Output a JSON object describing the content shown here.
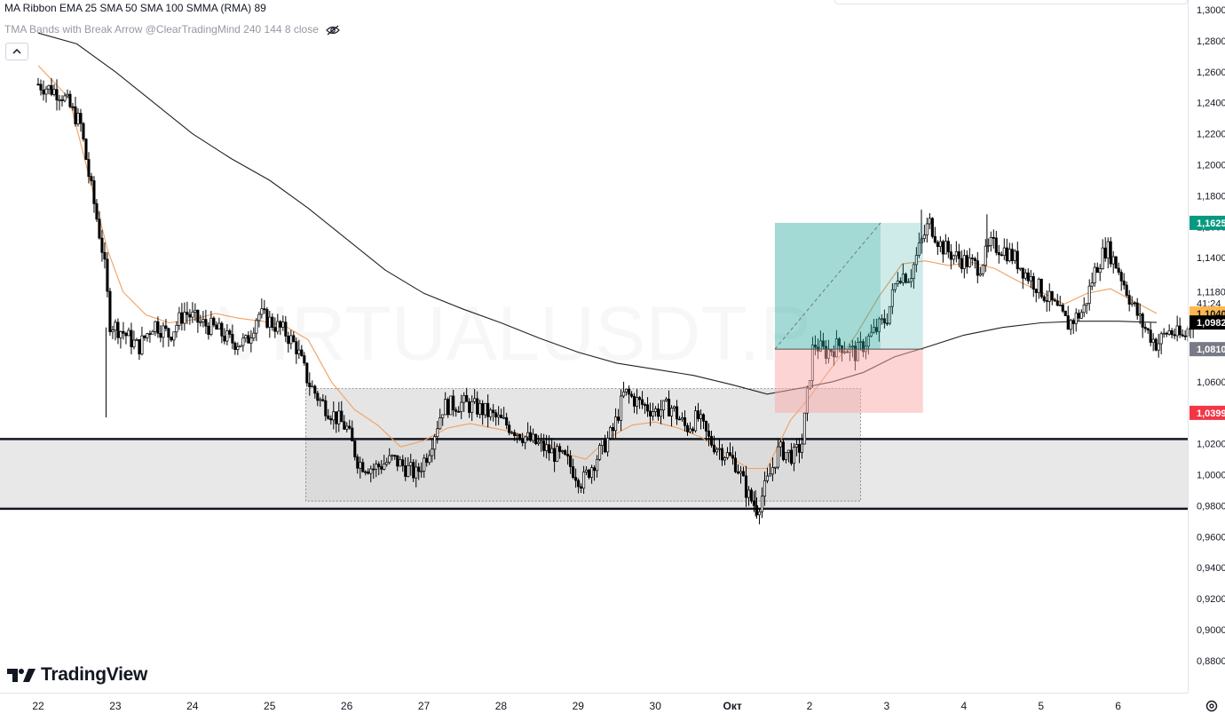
{
  "legend": {
    "ribbon": "MA Ribbon EMA 25 SMA 50 SMA 100 SMMA (RMA) 89",
    "tma": "TMA Bands with Break Arrow @ClearTradingMind 240 144 8 close"
  },
  "icons": {
    "visibility": "eye-crossed-icon",
    "collapse": "chevron-up-icon",
    "settings": "gear-icon"
  },
  "watermark": "VIRTUALUSDT.P",
  "logo_text": "TradingView",
  "colors": {
    "up_candle": "#ffffff",
    "down_candle": "#000000",
    "wick": "#000000",
    "ema": "#f0a060",
    "smma": "#222222",
    "profit_zone": "#26a69a",
    "loss_zone": "#f7a9a8",
    "range_box": "#d0d0d0",
    "support_band": "#e8e8e8",
    "target_label": "#089981",
    "stop_label": "#f23645",
    "price_label": "#ffb74d",
    "black_label": "#000000",
    "grey_label": "#787b86"
  },
  "chart_data": {
    "type": "candlestick",
    "symbol": "VIRTUALUSDT.P",
    "y_axis": {
      "range": [
        0.87,
        1.3
      ],
      "ticks": [
        "1,3000",
        "1,2800",
        "1,2600",
        "1,2400",
        "1,2200",
        "1,2000",
        "1,1800",
        "1,1600",
        "1,1400",
        "1,1200",
        "1,1000",
        "1,0800",
        "1,0600",
        "1,0400",
        "1,0200",
        "1,0000",
        "0,9800",
        "0,9600",
        "0,9400",
        "0,9200",
        "0,9000",
        "0,8800"
      ],
      "tick_values": [
        1.3,
        1.28,
        1.26,
        1.24,
        1.22,
        1.2,
        1.18,
        1.16,
        1.14,
        1.12,
        1.1,
        1.08,
        1.06,
        1.04,
        1.02,
        1.0,
        0.98,
        0.96,
        0.94,
        0.92,
        0.9,
        0.88
      ]
    },
    "x_axis": {
      "labels": [
        "22",
        "23",
        "24",
        "25",
        "26",
        "27",
        "28",
        "29",
        "30",
        "Окт",
        "2",
        "3",
        "4",
        "5",
        "6"
      ],
      "day_index": [
        0,
        1,
        2,
        3,
        4,
        5,
        6,
        7,
        8,
        9,
        10,
        11,
        12,
        13,
        14
      ]
    },
    "price_labels": [
      {
        "text": "1,1625",
        "value": 1.1625,
        "kind": "target"
      },
      {
        "text": "1,1180",
        "value": 1.118,
        "kind": "plain"
      },
      {
        "text": "41:24",
        "value": 1.1105,
        "kind": "countdown"
      },
      {
        "text": "1,1040",
        "value": 1.104,
        "kind": "price"
      },
      {
        "text": "1,0982",
        "value": 1.0982,
        "kind": "black"
      },
      {
        "text": "1,0810",
        "value": 1.081,
        "kind": "grey"
      },
      {
        "text": "1,0399",
        "value": 1.0399,
        "kind": "stop"
      }
    ],
    "support_lines": [
      1.023,
      0.978
    ],
    "range_box": {
      "x_start": 3.47,
      "x_end": 10.66,
      "top": 1.0555,
      "bottom": 0.983
    },
    "position": {
      "x_start": 9.55,
      "x_mid": 10.92,
      "x_end": 11.47,
      "entry": 1.081,
      "target": 1.1625,
      "stop": 1.0399
    },
    "series": [
      {
        "name": "EMA 25",
        "kind": "ema",
        "points": [
          [
            0.0,
            1.264
          ],
          [
            0.4,
            1.243
          ],
          [
            0.7,
            1.185
          ],
          [
            0.9,
            1.145
          ],
          [
            1.1,
            1.118
          ],
          [
            1.4,
            1.103
          ],
          [
            1.7,
            1.098
          ],
          [
            2.0,
            1.1
          ],
          [
            2.3,
            1.104
          ],
          [
            2.6,
            1.101
          ],
          [
            2.9,
            1.099
          ],
          [
            3.2,
            1.096
          ],
          [
            3.5,
            1.087
          ],
          [
            3.8,
            1.06
          ],
          [
            4.1,
            1.042
          ],
          [
            4.4,
            1.032
          ],
          [
            4.7,
            1.018
          ],
          [
            5.0,
            1.022
          ],
          [
            5.3,
            1.03
          ],
          [
            5.6,
            1.033
          ],
          [
            5.9,
            1.03
          ],
          [
            6.2,
            1.027
          ],
          [
            6.5,
            1.022
          ],
          [
            6.8,
            1.014
          ],
          [
            7.1,
            1.01
          ],
          [
            7.4,
            1.024
          ],
          [
            7.7,
            1.032
          ],
          [
            8.0,
            1.034
          ],
          [
            8.3,
            1.03
          ],
          [
            8.6,
            1.024
          ],
          [
            8.9,
            1.014
          ],
          [
            9.2,
            1.004
          ],
          [
            9.45,
            1.004
          ],
          [
            9.75,
            1.035
          ],
          [
            10.0,
            1.05
          ],
          [
            10.3,
            1.07
          ],
          [
            10.6,
            1.09
          ],
          [
            10.9,
            1.115
          ],
          [
            11.2,
            1.136
          ],
          [
            11.5,
            1.138
          ],
          [
            11.8,
            1.135
          ],
          [
            12.1,
            1.137
          ],
          [
            12.4,
            1.133
          ],
          [
            12.7,
            1.125
          ],
          [
            13.0,
            1.118
          ],
          [
            13.3,
            1.11
          ],
          [
            13.6,
            1.117
          ],
          [
            13.9,
            1.12
          ],
          [
            14.2,
            1.112
          ],
          [
            14.5,
            1.104
          ]
        ]
      },
      {
        "name": "SMMA 89",
        "kind": "smma",
        "points": [
          [
            0.0,
            1.285
          ],
          [
            0.5,
            1.278
          ],
          [
            1.0,
            1.26
          ],
          [
            1.5,
            1.24
          ],
          [
            2.0,
            1.22
          ],
          [
            2.5,
            1.204
          ],
          [
            3.0,
            1.19
          ],
          [
            3.5,
            1.172
          ],
          [
            4.0,
            1.152
          ],
          [
            4.5,
            1.132
          ],
          [
            5.0,
            1.117
          ],
          [
            5.5,
            1.107
          ],
          [
            6.0,
            1.098
          ],
          [
            6.5,
            1.088
          ],
          [
            7.0,
            1.079
          ],
          [
            7.5,
            1.072
          ],
          [
            8.0,
            1.068
          ],
          [
            8.5,
            1.064
          ],
          [
            9.0,
            1.058
          ],
          [
            9.45,
            1.052
          ],
          [
            9.9,
            1.056
          ],
          [
            10.3,
            1.06
          ],
          [
            10.7,
            1.066
          ],
          [
            11.1,
            1.076
          ],
          [
            11.5,
            1.082
          ],
          [
            12.0,
            1.09
          ],
          [
            12.5,
            1.095
          ],
          [
            13.0,
            1.098
          ],
          [
            13.5,
            1.099
          ],
          [
            14.0,
            1.099
          ],
          [
            14.5,
            1.0982
          ]
        ]
      }
    ],
    "price_path": [
      [
        0.0,
        1.252
      ],
      [
        0.3,
        1.246
      ],
      [
        0.55,
        1.226
      ],
      [
        0.65,
        1.195
      ],
      [
        0.75,
        1.168
      ],
      [
        0.85,
        1.14
      ],
      [
        0.93,
        1.098
      ],
      [
        1.1,
        1.092
      ],
      [
        1.3,
        1.082
      ],
      [
        1.5,
        1.098
      ],
      [
        1.7,
        1.09
      ],
      [
        1.9,
        1.105
      ],
      [
        2.1,
        1.098
      ],
      [
        2.3,
        1.094
      ],
      [
        2.5,
        1.086
      ],
      [
        2.7,
        1.085
      ],
      [
        2.85,
        1.104
      ],
      [
        3.0,
        1.099
      ],
      [
        3.2,
        1.092
      ],
      [
        3.35,
        1.082
      ],
      [
        3.5,
        1.06
      ],
      [
        3.65,
        1.048
      ],
      [
        3.8,
        1.04
      ],
      [
        4.0,
        1.03
      ],
      [
        4.15,
        1.008
      ],
      [
        4.35,
        1.004
      ],
      [
        4.6,
        1.01
      ],
      [
        4.9,
        1.0
      ],
      [
        5.05,
        1.014
      ],
      [
        5.25,
        1.044
      ],
      [
        5.5,
        1.046
      ],
      [
        5.75,
        1.042
      ],
      [
        5.95,
        1.036
      ],
      [
        6.15,
        1.03
      ],
      [
        6.35,
        1.023
      ],
      [
        6.6,
        1.016
      ],
      [
        6.85,
        1.009
      ],
      [
        7.05,
        0.995
      ],
      [
        7.25,
        1.012
      ],
      [
        7.45,
        1.028
      ],
      [
        7.6,
        1.053
      ],
      [
        7.8,
        1.046
      ],
      [
        8.0,
        1.041
      ],
      [
        8.2,
        1.044
      ],
      [
        8.4,
        1.03
      ],
      [
        8.55,
        1.037
      ],
      [
        8.7,
        1.022
      ],
      [
        8.9,
        1.014
      ],
      [
        9.05,
        1.007
      ],
      [
        9.2,
        0.987
      ],
      [
        9.32,
        0.978
      ],
      [
        9.45,
        0.995
      ],
      [
        9.6,
        1.016
      ],
      [
        9.8,
        1.012
      ],
      [
        9.9,
        1.02
      ],
      [
        10.05,
        1.085
      ],
      [
        10.2,
        1.079
      ],
      [
        10.4,
        1.084
      ],
      [
        10.6,
        1.078
      ],
      [
        10.8,
        1.09
      ],
      [
        11.0,
        1.101
      ],
      [
        11.15,
        1.13
      ],
      [
        11.3,
        1.128
      ],
      [
        11.45,
        1.15
      ],
      [
        11.55,
        1.163
      ],
      [
        11.7,
        1.148
      ],
      [
        11.85,
        1.142
      ],
      [
        12.0,
        1.138
      ],
      [
        12.2,
        1.134
      ],
      [
        12.35,
        1.148
      ],
      [
        12.5,
        1.146
      ],
      [
        12.65,
        1.14
      ],
      [
        12.8,
        1.13
      ],
      [
        13.0,
        1.119
      ],
      [
        13.2,
        1.107
      ],
      [
        13.35,
        1.097
      ],
      [
        13.55,
        1.106
      ],
      [
        13.7,
        1.132
      ],
      [
        13.85,
        1.147
      ],
      [
        14.0,
        1.133
      ],
      [
        14.15,
        1.114
      ],
      [
        14.3,
        1.098
      ],
      [
        14.5,
        1.084
      ],
      [
        14.65,
        1.093
      ],
      [
        14.85,
        1.088
      ],
      [
        15.0,
        1.104
      ],
      [
        15.1,
        1.114
      ]
    ],
    "notable_extremes": {
      "spike_low": [
        0.88,
        1.037
      ],
      "swing_low": [
        9.3,
        0.973
      ],
      "swing_high": [
        11.45,
        1.171
      ],
      "wick_high": [
        12.3,
        1.168
      ]
    }
  }
}
